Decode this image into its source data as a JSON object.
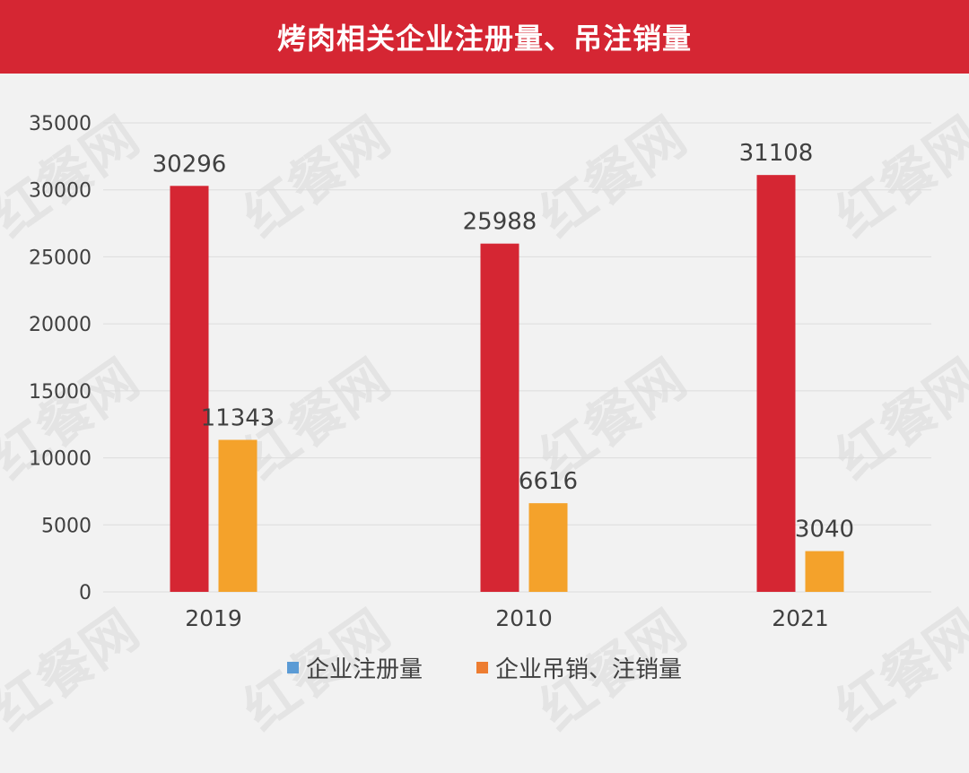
{
  "colors": {
    "title_bg": "#d52633",
    "bar_registered": "#d52633",
    "bar_cancelled": "#f4a22b",
    "legend_registered_swatch": "#5b9bd5",
    "legend_cancelled_swatch": "#ed7d31",
    "grid": "#dcdcdc",
    "axis_text": "#404040",
    "watermark": "#e4e4e4"
  },
  "watermark_text": "红餐网",
  "chart_data": {
    "type": "bar",
    "title": "烤肉相关企业注册量、吊注销量",
    "categories": [
      "2019",
      "2010",
      "2021"
    ],
    "series": [
      {
        "name": "企业注册量",
        "values": [
          30296,
          25988,
          31108
        ]
      },
      {
        "name": "企业吊销、注销量",
        "values": [
          11343,
          6616,
          3040
        ]
      }
    ],
    "ylim": [
      0,
      35000
    ],
    "yticks": [
      "0",
      "5000",
      "10000",
      "15000",
      "20000",
      "25000",
      "30000",
      "35000"
    ],
    "grid": true,
    "legend_position": "bottom",
    "data_labels": true
  }
}
